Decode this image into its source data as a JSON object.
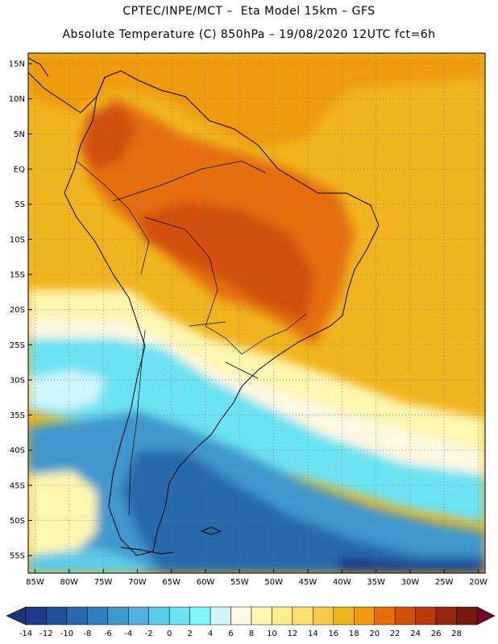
{
  "header": {
    "line1": "CPTEC/INPE/MCT –  Eta Model 15km – GFS",
    "line2": "Absolute Temperature (C) 850hPa – 19/08/2020 12UTC fct=6h"
  },
  "axes": {
    "lat_ticks": [
      "15N",
      "10N",
      "5N",
      "EQ",
      "5S",
      "10S",
      "15S",
      "20S",
      "25S",
      "30S",
      "35S",
      "40S",
      "45S",
      "50S",
      "55S"
    ],
    "lon_ticks": [
      "85W",
      "80W",
      "75W",
      "70W",
      "65W",
      "60W",
      "55W",
      "50W",
      "45W",
      "40W",
      "35W",
      "30W",
      "25W",
      "20W"
    ],
    "lat_range": [
      -57.5,
      16.5
    ],
    "lon_range": [
      -86,
      -19
    ],
    "grid": "dotted"
  },
  "colorbar": {
    "labels": [
      "-14",
      "-12",
      "-10",
      "-8",
      "-6",
      "-4",
      "-2",
      "0",
      "2",
      "4",
      "6",
      "8",
      "10",
      "12",
      "14",
      "16",
      "18",
      "20",
      "22",
      "24",
      "26",
      "28"
    ],
    "colors": [
      "#1f3a8c",
      "#22519a",
      "#2869ad",
      "#2f80bf",
      "#3f98ce",
      "#52b0dc",
      "#5ccbe8",
      "#6ae2f2",
      "#7ef7fb",
      "#cff6fb",
      "#fff8e2",
      "#fff6b0",
      "#ffef8c",
      "#ffe070",
      "#f7c94a",
      "#f0b41e",
      "#f09a10",
      "#e66e08",
      "#d24f08",
      "#b93a08",
      "#962812",
      "#78180f"
    ],
    "under_color": "#1d3578",
    "over_color": "#6d0a2a"
  },
  "regions": [
    {
      "name": "warm-ocean-north",
      "color": "#f0b41e"
    },
    {
      "name": "hot-interior",
      "color": "#d24f08"
    },
    {
      "name": "cold-south",
      "color": "#2f80bf"
    },
    {
      "name": "cyan-front",
      "color": "#6ae2f2"
    }
  ]
}
